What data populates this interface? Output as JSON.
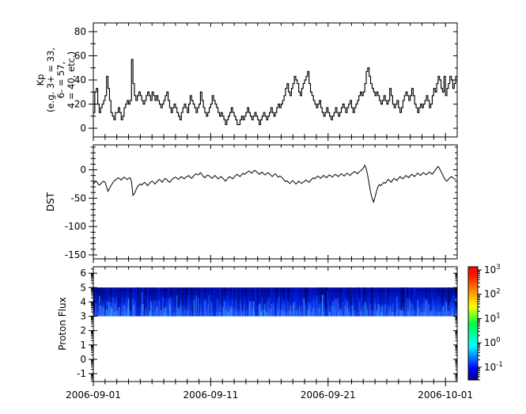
{
  "figure": {
    "background": "#ffffff",
    "axis_color": "#000000",
    "line_color": "#000000"
  },
  "xaxis": {
    "tick_labels": [
      "2006-09-01",
      "2006-09-11",
      "2006-09-21",
      "2006-10-01"
    ],
    "major_days": [
      0,
      10,
      20,
      30
    ],
    "minor_step_days": 1,
    "range_days": [
      0,
      31
    ]
  },
  "chart_data": [
    {
      "type": "line",
      "subtype": "step",
      "name": "Kp",
      "ylabel": "Kp\n(e.g. 3+ = 33,\n6- = 57,\n4 = 40, etc.)",
      "yticks": [
        0,
        20,
        40,
        60,
        80
      ],
      "yminor_step": 10,
      "ylim": [
        -7.2,
        87.2
      ],
      "x_start": "2006-09-01",
      "sample_hours": 3,
      "values": [
        13,
        30,
        33,
        20,
        13,
        17,
        20,
        23,
        27,
        43,
        33,
        23,
        13,
        10,
        7,
        13,
        13,
        17,
        13,
        7,
        10,
        17,
        20,
        23,
        20,
        23,
        57,
        37,
        27,
        23,
        27,
        30,
        27,
        23,
        20,
        23,
        27,
        30,
        27,
        23,
        30,
        27,
        23,
        27,
        23,
        20,
        17,
        20,
        23,
        27,
        30,
        23,
        17,
        13,
        17,
        20,
        17,
        13,
        10,
        7,
        13,
        17,
        20,
        17,
        13,
        20,
        27,
        23,
        20,
        17,
        13,
        17,
        20,
        30,
        23,
        17,
        13,
        10,
        13,
        17,
        20,
        27,
        23,
        20,
        17,
        13,
        10,
        13,
        10,
        7,
        3,
        7,
        10,
        13,
        17,
        13,
        10,
        7,
        3,
        3,
        7,
        10,
        7,
        10,
        13,
        17,
        13,
        10,
        7,
        10,
        13,
        10,
        7,
        3,
        7,
        10,
        13,
        10,
        7,
        10,
        13,
        17,
        13,
        10,
        13,
        17,
        20,
        17,
        20,
        23,
        27,
        33,
        37,
        30,
        27,
        33,
        37,
        43,
        40,
        37,
        30,
        27,
        33,
        37,
        40,
        43,
        47,
        37,
        30,
        27,
        23,
        20,
        17,
        20,
        23,
        17,
        13,
        10,
        13,
        17,
        13,
        10,
        7,
        10,
        13,
        17,
        13,
        10,
        13,
        17,
        20,
        17,
        13,
        17,
        20,
        23,
        17,
        13,
        17,
        20,
        23,
        27,
        30,
        27,
        30,
        37,
        47,
        50,
        43,
        37,
        33,
        30,
        27,
        30,
        27,
        23,
        20,
        23,
        27,
        23,
        20,
        23,
        33,
        27,
        20,
        17,
        20,
        23,
        17,
        13,
        17,
        23,
        27,
        30,
        27,
        23,
        27,
        33,
        27,
        20,
        17,
        13,
        17,
        20,
        17,
        20,
        23,
        27,
        23,
        17,
        20,
        27,
        33,
        30,
        37,
        43,
        40,
        33,
        30,
        43,
        27,
        33,
        37,
        43,
        40,
        33,
        37,
        43
      ]
    },
    {
      "type": "line",
      "name": "DST",
      "ylabel": "DST",
      "yticks": [
        0,
        -50,
        -100,
        -150
      ],
      "yminor_step": 10,
      "ylim": [
        -157,
        44
      ],
      "x_start": "2006-09-01",
      "sample_hours": 3,
      "values": [
        -25,
        -22,
        -20,
        -24,
        -27,
        -25,
        -22,
        -20,
        -22,
        -30,
        -38,
        -33,
        -28,
        -24,
        -20,
        -18,
        -16,
        -14,
        -16,
        -18,
        -15,
        -13,
        -15,
        -17,
        -15,
        -14,
        -20,
        -45,
        -42,
        -36,
        -30,
        -27,
        -25,
        -27,
        -24,
        -22,
        -25,
        -28,
        -25,
        -22,
        -20,
        -22,
        -25,
        -22,
        -19,
        -17,
        -19,
        -22,
        -18,
        -15,
        -17,
        -20,
        -22,
        -19,
        -16,
        -14,
        -13,
        -15,
        -17,
        -14,
        -12,
        -14,
        -16,
        -13,
        -12,
        -10,
        -13,
        -15,
        -12,
        -9,
        -7,
        -9,
        -8,
        -5,
        -8,
        -12,
        -14,
        -11,
        -9,
        -11,
        -13,
        -15,
        -12,
        -10,
        -13,
        -16,
        -14,
        -12,
        -14,
        -17,
        -20,
        -17,
        -14,
        -12,
        -14,
        -16,
        -13,
        -10,
        -8,
        -10,
        -12,
        -9,
        -6,
        -8,
        -6,
        -4,
        -2,
        -4,
        -6,
        -3,
        -1,
        -3,
        -5,
        -8,
        -6,
        -4,
        -7,
        -9,
        -7,
        -5,
        -7,
        -10,
        -12,
        -9,
        -7,
        -10,
        -13,
        -11,
        -12,
        -15,
        -18,
        -21,
        -19,
        -22,
        -24,
        -21,
        -19,
        -22,
        -25,
        -23,
        -20,
        -22,
        -24,
        -22,
        -20,
        -18,
        -20,
        -22,
        -19,
        -16,
        -14,
        -16,
        -13,
        -11,
        -13,
        -15,
        -12,
        -10,
        -12,
        -14,
        -11,
        -9,
        -11,
        -13,
        -10,
        -8,
        -10,
        -12,
        -9,
        -7,
        -9,
        -11,
        -8,
        -6,
        -8,
        -10,
        -7,
        -5,
        -3,
        -5,
        -7,
        -4,
        -2,
        0,
        3,
        8,
        2,
        -10,
        -25,
        -40,
        -50,
        -57,
        -48,
        -38,
        -30,
        -26,
        -28,
        -25,
        -22,
        -24,
        -20,
        -17,
        -19,
        -22,
        -18,
        -15,
        -17,
        -19,
        -15,
        -12,
        -14,
        -16,
        -13,
        -10,
        -12,
        -14,
        -10,
        -8,
        -10,
        -12,
        -9,
        -6,
        -8,
        -10,
        -7,
        -5,
        -7,
        -9,
        -6,
        -4,
        -6,
        -8,
        -4,
        -1,
        3,
        6,
        2,
        -3,
        -8,
        -14,
        -18,
        -20,
        -17,
        -14,
        -12,
        -14,
        -16,
        -17
      ]
    },
    {
      "type": "heatmap",
      "name": "Proton Flux",
      "ylabel": "Proton Flux",
      "yticks": [
        -1,
        0,
        1,
        2,
        3,
        4,
        5,
        6
      ],
      "ylim": [
        -1.55,
        6.45
      ],
      "yminor": "log-decades",
      "band": {
        "y_top": 5,
        "y_bottom": 3,
        "base_gradient": [
          "#0005a0",
          "#0016c8",
          "#0030e8",
          "#1c4cf8",
          "#2e62ff"
        ],
        "texture_colors": [
          "#0013b8",
          "#001ed6",
          "#000d9e"
        ],
        "dark_streak_colors": [
          "#000466",
          "#00077e"
        ],
        "bright_streak_colors": [
          "#1a50ff",
          "#2a6aff",
          "#3f86ff",
          "#30a0ff"
        ],
        "texture_count": 300,
        "dark_streak_count": 130,
        "bright_streak_count": 320,
        "seed": 42
      },
      "colorbar": {
        "scale": "log",
        "base": "10",
        "tick_exponents": [
          "3",
          "2",
          "1",
          "0",
          "-1"
        ],
        "range_exponents": [
          -1.52,
          3.13
        ],
        "gradient_bottom_to_top": [
          "#000080",
          "#0000ff",
          "#00ffff",
          "#00ff40",
          "#ffff00",
          "#ff8000",
          "#ff1800",
          "#ff0000"
        ],
        "gradient_stops": [
          0,
          0.1,
          0.3,
          0.5,
          0.65,
          0.8,
          0.92,
          1
        ]
      }
    }
  ]
}
